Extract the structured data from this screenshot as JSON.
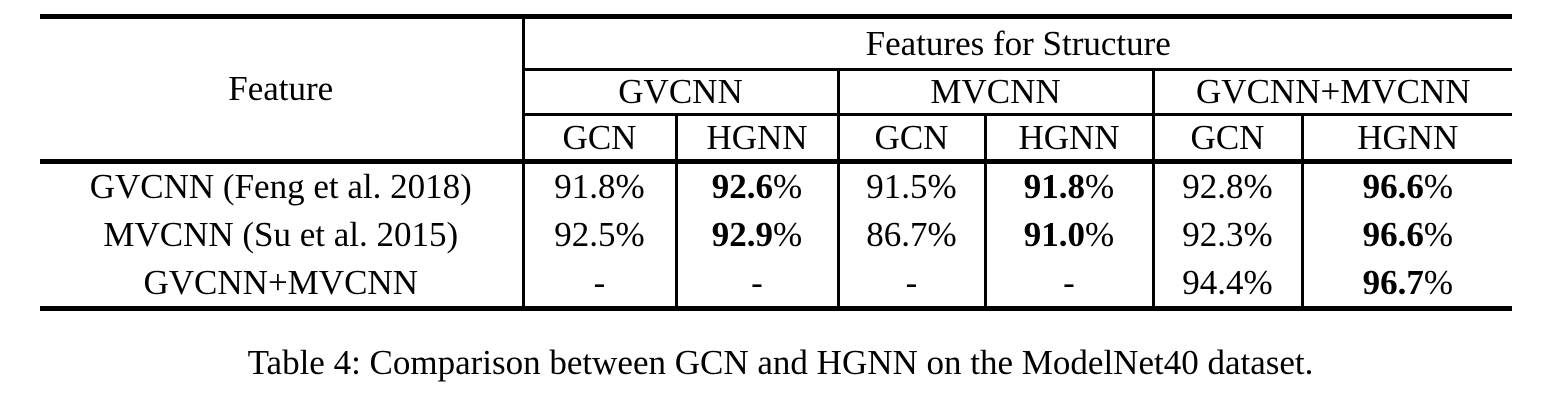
{
  "colors": {
    "text": "#000000",
    "background": "#ffffff",
    "rule": "#000000"
  },
  "table": {
    "feature_col_header": "Feature",
    "top_header": "Features for Structure",
    "groups": [
      "GVCNN",
      "MVCNN",
      "GVCNN+MVCNN"
    ],
    "sub_headers": [
      "GCN",
      "HGNN",
      "GCN",
      "HGNN",
      "GCN",
      "HGNN"
    ],
    "rows": [
      {
        "feature": "GVCNN (Feng et al. 2018)",
        "cells": [
          {
            "value": "91.8",
            "suffix": "%",
            "bold": false
          },
          {
            "value": "92.6",
            "suffix": "%",
            "bold": true
          },
          {
            "value": "91.5",
            "suffix": "%",
            "bold": false
          },
          {
            "value": "91.8",
            "suffix": "%",
            "bold": true
          },
          {
            "value": "92.8",
            "susuffix": "",
            "suffix": "%",
            "bold": false
          },
          {
            "value": "96.6",
            "suffix": "%",
            "bold": true
          }
        ]
      },
      {
        "feature": "MVCNN (Su et al. 2015)",
        "cells": [
          {
            "value": "92.5",
            "suffix": "%",
            "bold": false
          },
          {
            "value": "92.9",
            "suffix": "%",
            "bold": true
          },
          {
            "value": "86.7",
            "suffix": "%",
            "bold": false
          },
          {
            "value": "91.0",
            "suffix": "%",
            "bold": true
          },
          {
            "value": "92.3",
            "suffix": "%",
            "bold": false
          },
          {
            "value": "96.6",
            "suffix": "%",
            "bold": true
          }
        ]
      },
      {
        "feature": "GVCNN+MVCNN",
        "cells": [
          {
            "value": "-",
            "suffix": "",
            "bold": false
          },
          {
            "value": "-",
            "suffix": "",
            "bold": false
          },
          {
            "value": "-",
            "suffix": "",
            "bold": false
          },
          {
            "value": "-",
            "suffix": "",
            "bold": false
          },
          {
            "value": "94.4",
            "suffix": "%",
            "bold": false
          },
          {
            "value": "96.7",
            "suffix": "%",
            "bold": true
          }
        ]
      }
    ]
  },
  "caption": "Table 4: Comparison between GCN and HGNN on the ModelNet40 dataset."
}
